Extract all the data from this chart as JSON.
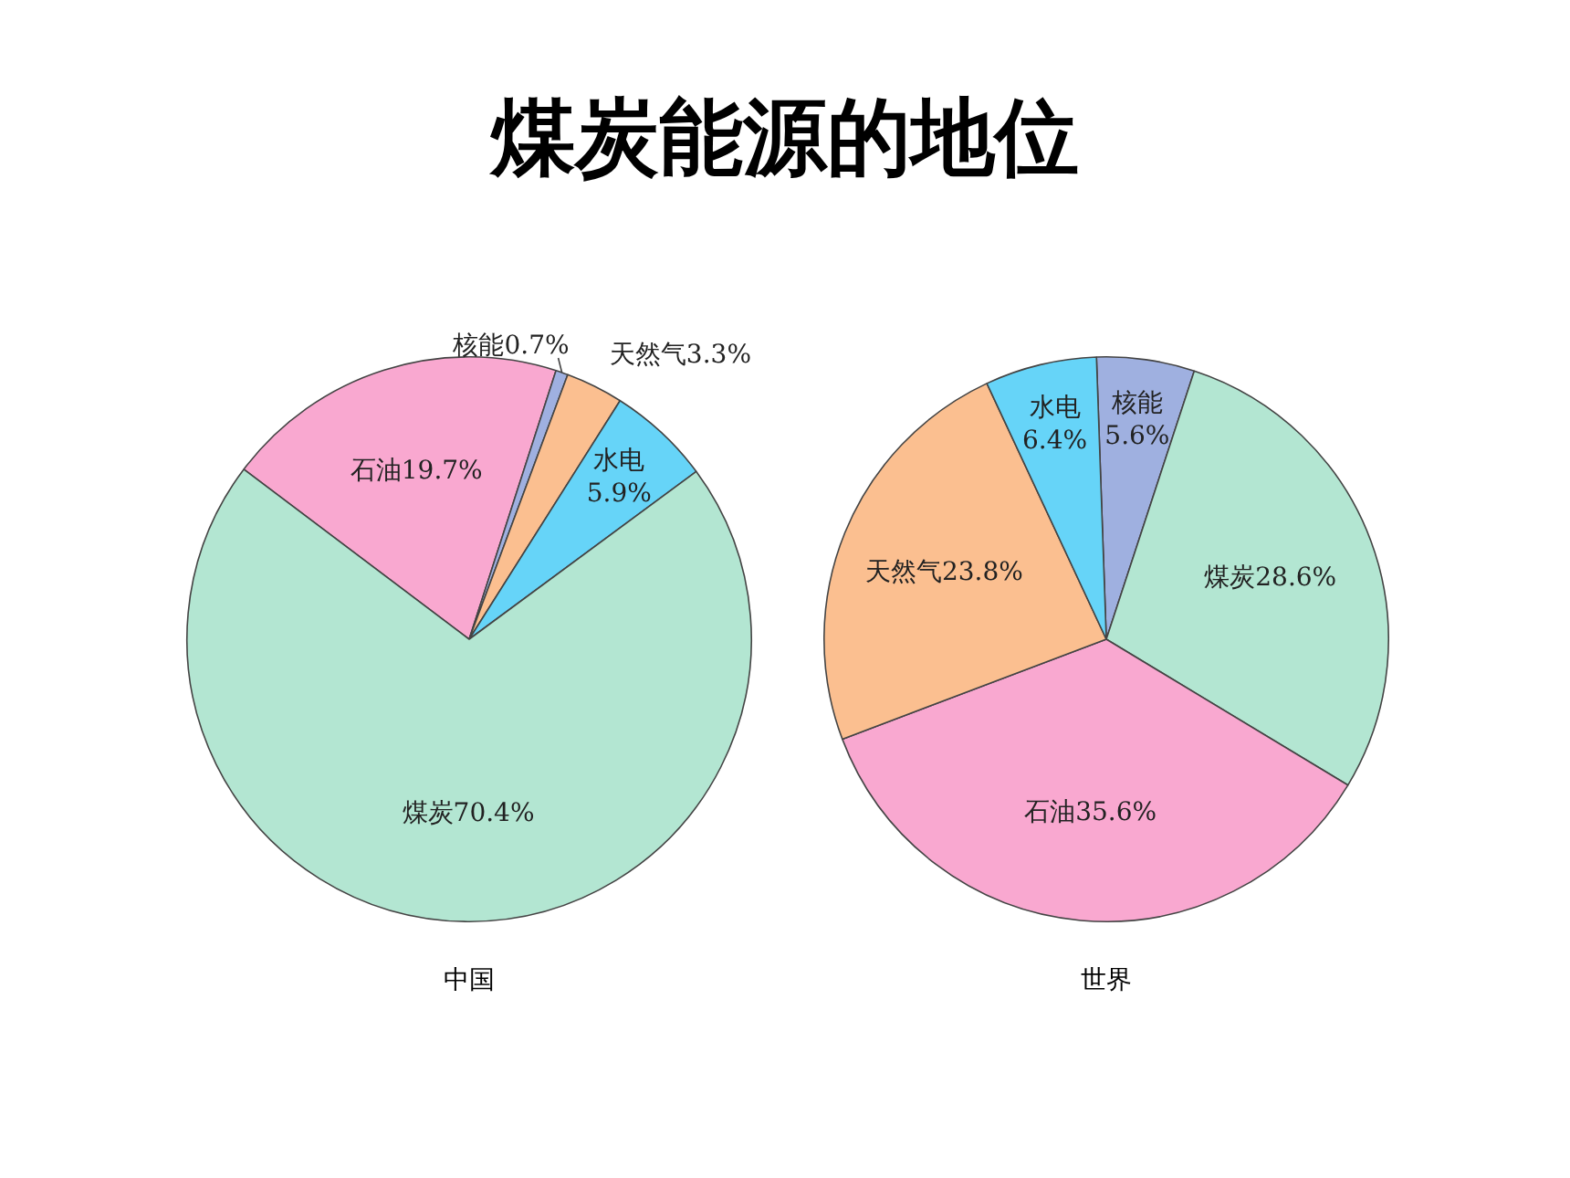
{
  "chart_data": [
    {
      "type": "pie",
      "title": "煤炭能源的地位",
      "xlabel": "中国",
      "categories": [
        "石油",
        "核能",
        "天然气",
        "水电",
        "煤炭"
      ],
      "values": [
        19.7,
        0.7,
        3.3,
        5.9,
        70.4
      ],
      "value_labels": [
        "19.7%",
        "0.7%",
        "3.3%",
        "5.9%",
        "70.4%"
      ],
      "colors": [
        "#f9a8d0",
        "#9fb0e0",
        "#fbbf90",
        "#66d4f8",
        "#b3e6d2"
      ],
      "legend": false
    },
    {
      "type": "pie",
      "xlabel": "世界",
      "categories": [
        "核能",
        "煤炭",
        "石油",
        "天然气",
        "水电"
      ],
      "values": [
        5.6,
        28.6,
        35.6,
        23.8,
        6.4
      ],
      "value_labels": [
        "5.6%",
        "28.6%",
        "35.6%",
        "23.8%",
        "6.4%"
      ],
      "colors": [
        "#9fb0e0",
        "#b3e6d2",
        "#f9a8d0",
        "#fbbf90",
        "#66d4f8"
      ],
      "legend": false
    }
  ]
}
